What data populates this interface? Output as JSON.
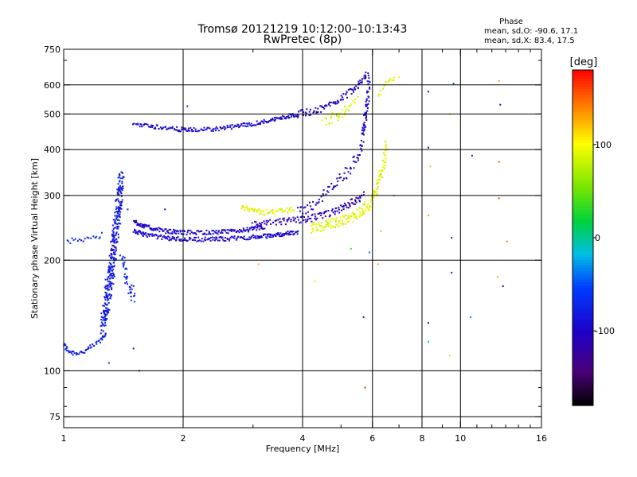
{
  "chart_data": {
    "type": "scatter",
    "title": "Tromsø 20121219 10:12:00–10:13:43",
    "subtitle": "RwPretec (8p)",
    "xlabel": "Frequency [MHz]",
    "ylabel": "Stationary phase Virtual Height [km]",
    "x_scale": "log",
    "y_scale": "log",
    "xlim": [
      1,
      16
    ],
    "ylim": [
      70,
      750
    ],
    "x_ticks": [
      1,
      2,
      4,
      6,
      8,
      10,
      16
    ],
    "x_tick_labels": [
      "1",
      "2",
      "4",
      "6",
      "8",
      "10",
      "16"
    ],
    "y_ticks": [
      75,
      100,
      200,
      300,
      400,
      500,
      600,
      750
    ],
    "y_tick_labels": [
      "75",
      "100",
      "200",
      "300",
      "400",
      "500",
      "600",
      "750"
    ],
    "grid": true,
    "phase_legend": {
      "title": "Phase",
      "line_o": "mean, sd,O: -90.6, 17.1",
      "line_x": "mean, sd,X:  83.4, 17.5"
    },
    "colorbar": {
      "label": "[deg]",
      "range": [
        -180,
        180
      ],
      "ticks": [
        100,
        0,
        -100
      ],
      "tick_labels": [
        "100",
        "0",
        "-100"
      ]
    },
    "series": [
      {
        "traces": [
          {
            "x": [
              1.0,
              1.02,
              1.05,
              1.1,
              1.15,
              1.2,
              1.25,
              1.28
            ],
            "y": [
              118,
              114,
              112,
              112,
              114,
              118,
              122,
              128
            ],
            "phase": -75,
            "spread": 0.015,
            "n": 55
          },
          {
            "x": [
              1.02,
              1.06,
              1.1,
              1.15,
              1.2,
              1.25
            ],
            "y": [
              225,
              226,
              228,
              230,
              232,
              234
            ],
            "phase": -70,
            "spread": 0.015,
            "n": 20
          },
          {
            "x": [
              1.25,
              1.28,
              1.3,
              1.32,
              1.34,
              1.36,
              1.38,
              1.4
            ],
            "y": [
              130,
              150,
              170,
              190,
              220,
              250,
              290,
              340
            ],
            "phase": -80,
            "spread": 0.06,
            "n": 320
          },
          {
            "x": [
              1.4,
              1.42,
              1.45,
              1.48,
              1.5
            ],
            "y": [
              210,
              190,
              175,
              165,
              160
            ],
            "phase": -70,
            "spread": 0.04,
            "n": 40
          },
          {
            "x": [
              1.5,
              1.6,
              1.8,
              2.0,
              2.3,
              2.6,
              3.0,
              3.3,
              3.6,
              3.9
            ],
            "y": [
              240,
              235,
              230,
              228,
              228,
              229,
              231,
              233,
              236,
              238
            ],
            "phase": -95,
            "spread": 0.012,
            "n": 220
          },
          {
            "x": [
              1.5,
              1.6,
              1.8,
              2.0,
              2.3,
              2.6,
              2.9,
              3.2
            ],
            "y": [
              255,
              247,
              240,
              238,
              238,
              239,
              242,
              246
            ],
            "phase": -100,
            "spread": 0.012,
            "n": 180
          },
          {
            "x": [
              3.0,
              3.3,
              3.6,
              3.9,
              4.2,
              4.5,
              4.8,
              5.1,
              5.4,
              5.7
            ],
            "y": [
              250,
              252,
              255,
              258,
              260,
              265,
              270,
              280,
              290,
              300
            ],
            "phase": -110,
            "spread": 0.02,
            "n": 130
          },
          {
            "x": [
              3.9,
              4.2,
              4.5,
              4.8,
              5.1,
              5.4,
              5.6,
              5.7,
              5.8
            ],
            "y": [
              270,
              280,
              300,
              320,
              340,
              370,
              400,
              450,
              520
            ],
            "phase": -105,
            "spread": 0.03,
            "n": 90
          },
          {
            "x": [
              5.7,
              5.8,
              5.85,
              5.9
            ],
            "y": [
              450,
              500,
              560,
              640
            ],
            "phase": -100,
            "spread": 0.03,
            "n": 40
          },
          {
            "x": [
              1.5,
              1.7,
              1.9,
              2.1,
              2.4,
              2.7,
              3.0,
              3.3,
              3.6,
              3.9
            ],
            "y": [
              470,
              462,
              455,
              452,
              455,
              462,
              470,
              480,
              490,
              500
            ],
            "phase": -95,
            "spread": 0.012,
            "n": 200
          },
          {
            "x": [
              3.9,
              4.3,
              4.7,
              5.1,
              5.5,
              5.8
            ],
            "y": [
              500,
              510,
              530,
              560,
              600,
              640
            ],
            "phase": -105,
            "spread": 0.02,
            "n": 90
          },
          {
            "x": [
              2.8,
              3.0,
              3.2,
              3.5,
              3.8
            ],
            "y": [
              280,
              272,
              270,
              272,
              275
            ],
            "phase": 95,
            "spread": 0.015,
            "n": 60
          },
          {
            "x": [
              4.2,
              4.5,
              4.8,
              5.1,
              5.4,
              5.7,
              6.0,
              6.2,
              6.4,
              6.5
            ],
            "y": [
              245,
              248,
              252,
              258,
              265,
              275,
              290,
              320,
              360,
              410
            ],
            "phase": 90,
            "spread": 0.03,
            "n": 180
          },
          {
            "x": [
              4.5,
              4.8,
              5.0,
              5.2,
              5.5
            ],
            "y": [
              480,
              490,
              500,
              520,
              560
            ],
            "phase": 85,
            "spread": 0.03,
            "n": 35
          },
          {
            "x": [
              6.2,
              6.4,
              6.6,
              6.8
            ],
            "y": [
              560,
              590,
              610,
              630
            ],
            "phase": 95,
            "spread": 0.02,
            "n": 15
          }
        ]
      }
    ],
    "scattered_points": [
      {
        "x": 1.45,
        "y": 275,
        "phase": -90
      },
      {
        "x": 1.55,
        "y": 100,
        "phase": -110
      },
      {
        "x": 1.5,
        "y": 115,
        "phase": -100
      },
      {
        "x": 1.3,
        "y": 105,
        "phase": -70
      },
      {
        "x": 1.8,
        "y": 275,
        "phase": -100
      },
      {
        "x": 2.05,
        "y": 525,
        "phase": -80
      },
      {
        "x": 3.1,
        "y": 195,
        "phase": 120
      },
      {
        "x": 4.3,
        "y": 175,
        "phase": 110
      },
      {
        "x": 5.7,
        "y": 140,
        "phase": -110
      },
      {
        "x": 5.75,
        "y": 90,
        "phase": 170
      },
      {
        "x": 6.2,
        "y": 195,
        "phase": 130
      },
      {
        "x": 5.9,
        "y": 210,
        "phase": -40
      },
      {
        "x": 8.3,
        "y": 575,
        "phase": -110
      },
      {
        "x": 8.3,
        "y": 405,
        "phase": -110
      },
      {
        "x": 8.3,
        "y": 265,
        "phase": 130
      },
      {
        "x": 8.4,
        "y": 360,
        "phase": 120
      },
      {
        "x": 8.3,
        "y": 135,
        "phase": -100
      },
      {
        "x": 8.3,
        "y": 120,
        "phase": -20
      },
      {
        "x": 9.4,
        "y": 500,
        "phase": 110
      },
      {
        "x": 9.5,
        "y": 185,
        "phase": -80
      },
      {
        "x": 9.5,
        "y": 230,
        "phase": -110
      },
      {
        "x": 9.4,
        "y": 110,
        "phase": 80
      },
      {
        "x": 9.6,
        "y": 605,
        "phase": -50
      },
      {
        "x": 10.7,
        "y": 385,
        "phase": -80
      },
      {
        "x": 10.6,
        "y": 140,
        "phase": -30
      },
      {
        "x": 12.5,
        "y": 615,
        "phase": 130
      },
      {
        "x": 12.6,
        "y": 530,
        "phase": -100
      },
      {
        "x": 12.5,
        "y": 370,
        "phase": 150
      },
      {
        "x": 12.5,
        "y": 295,
        "phase": 160
      },
      {
        "x": 12.4,
        "y": 180,
        "phase": 130
      },
      {
        "x": 12.8,
        "y": 170,
        "phase": -110
      },
      {
        "x": 13.1,
        "y": 225,
        "phase": 140
      },
      {
        "x": 6.8,
        "y": 300,
        "phase": 140
      },
      {
        "x": 7.0,
        "y": 630,
        "phase": 95
      },
      {
        "x": 6.3,
        "y": 240,
        "phase": 60
      },
      {
        "x": 5.3,
        "y": 215,
        "phase": 40
      }
    ]
  }
}
